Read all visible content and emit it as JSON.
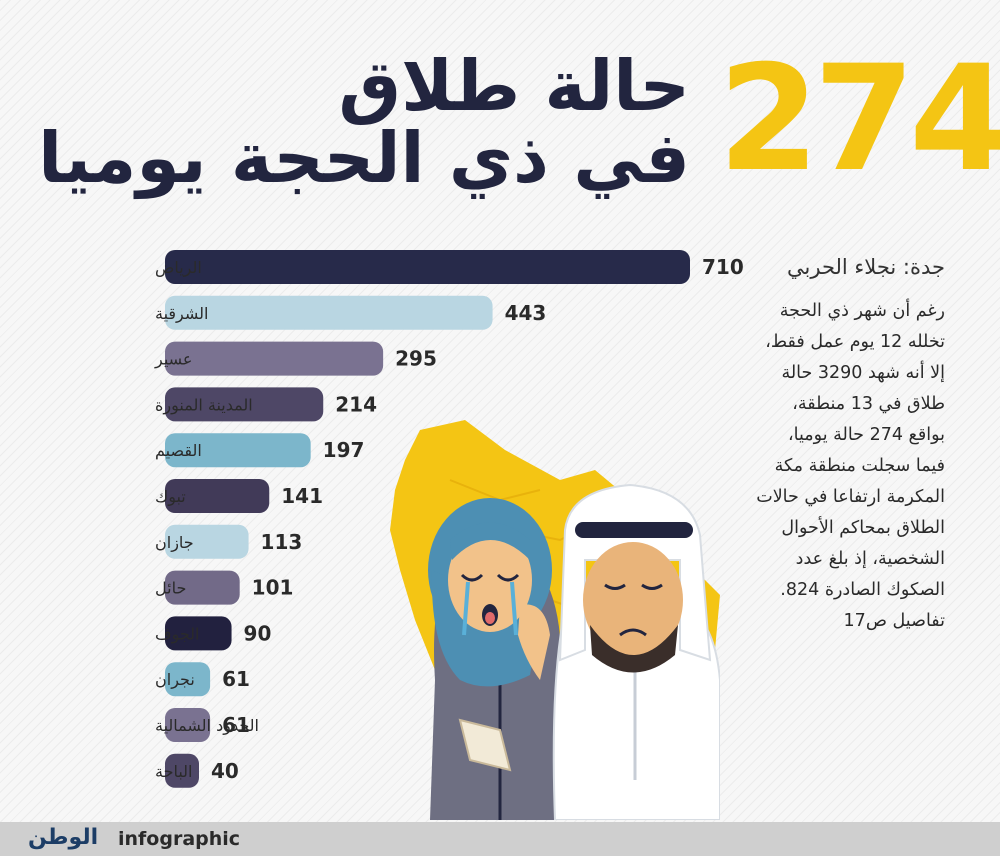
{
  "headline": {
    "number": "274",
    "line1": "حالة طلاق",
    "line2": "في ذي الحجة يوميا"
  },
  "article": {
    "byline": "جدة: نجلاء الحربي",
    "lines": [
      "رغم أن شهر ذي الحجة",
      "تخلله 12 يوم عمل فقط،",
      "إلا أنه شهد 3290 حالة",
      "طلاق في 13 منطقة،",
      "بواقع 274 حالة يوميا،",
      "فيما سجلت منطقة مكة",
      "المكرمة ارتفاعا في حالات",
      "الطلاق بمحاكم الأحوال",
      "الشخصية، إذ بلغ عدد",
      "الصكوك الصادرة 824.",
      "تفاصيل ص17"
    ]
  },
  "chart_data": {
    "type": "bar",
    "orientation": "horizontal",
    "title": "",
    "xlabel": "",
    "ylabel": "",
    "xlim": [
      0,
      710
    ],
    "categories": [
      "الرياض",
      "الشرقية",
      "عسير",
      "المدينة المنورة",
      "القصيم",
      "تبوك",
      "جازان",
      "حائل",
      "الجوف",
      "نجران",
      "الحدود الشمالية",
      "الباحة"
    ],
    "values": [
      710,
      443,
      295,
      214,
      197,
      141,
      113,
      101,
      90,
      61,
      61,
      40
    ],
    "colors": [
      "#272a4a",
      "#b9d6e2",
      "#7a7291",
      "#4e4766",
      "#7cb6cb",
      "#413a58",
      "#b9d6e2",
      "#726a88",
      "#22213f",
      "#7cb6cb",
      "#7a7291",
      "#4e4766"
    ]
  },
  "footer": {
    "logo": "الوطن",
    "label": "infographic"
  }
}
